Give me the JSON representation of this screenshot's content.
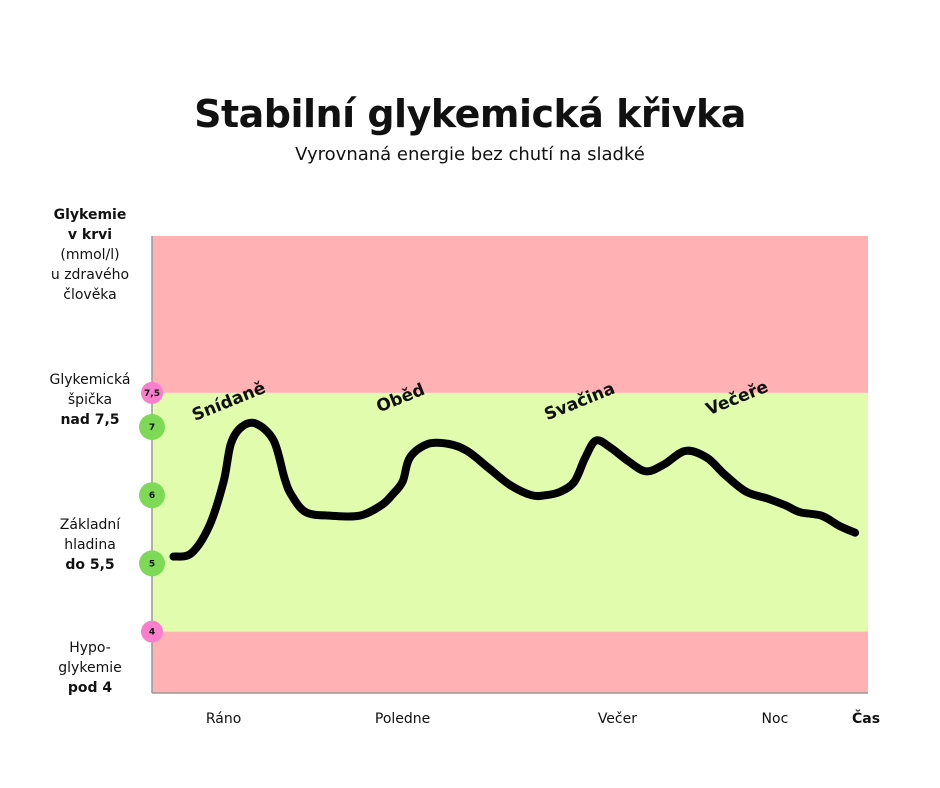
{
  "title": "Stabilní glykemická křivka",
  "subtitle": "Vyrovnaná energie bez chutí na sladké",
  "side_labels": {
    "axis": {
      "line1": "Glykemie",
      "line2": "v krvi",
      "line3": "(mmol/l)",
      "line4": "u zdravého",
      "line5": "člověka"
    },
    "spike": {
      "line1": "Glykemická",
      "line2": "špička",
      "line3": "nad 7,5"
    },
    "base": {
      "line1": "Základní",
      "line2": "hladina",
      "line3": "do 5,5"
    },
    "hypo": {
      "line1": "Hypo-",
      "line2": "glykemie",
      "line3": "pod 4"
    }
  },
  "colors": {
    "danger_zone": "#ffb1b4",
    "normal_zone": "#e0fcac",
    "badge_pink": "#f97ecb",
    "badge_green": "#7ed957",
    "curve": "#000000",
    "axis": "#999999"
  },
  "chart_data": {
    "type": "line",
    "title": "Stabilní glykemická křivka",
    "subtitle": "Vyrovnaná energie bez chutí na sladké",
    "ylabel": "Glykemie v krvi (mmol/l) u zdravého člověka",
    "xlabel": "Čas",
    "ylim": [
      3.1,
      9.8
    ],
    "x_ticks": [
      "Ráno",
      "Poledne",
      "Večer",
      "Noc"
    ],
    "x_end_label": "Čas",
    "y_badges": [
      {
        "label": "7,5",
        "value": 7.5,
        "color": "pink"
      },
      {
        "label": "7",
        "value": 7.0,
        "color": "green"
      },
      {
        "label": "6",
        "value": 6.0,
        "color": "green"
      },
      {
        "label": "5",
        "value": 5.0,
        "color": "green"
      },
      {
        "label": "4",
        "value": 4.0,
        "color": "pink"
      }
    ],
    "zones": [
      {
        "from": 7.5,
        "to": 9.8,
        "kind": "danger"
      },
      {
        "from": 4.0,
        "to": 7.5,
        "kind": "normal"
      },
      {
        "from": 3.1,
        "to": 4.0,
        "kind": "danger"
      }
    ],
    "annotations": [
      {
        "text": "Snídaně",
        "x": 0.11,
        "y": 7.3
      },
      {
        "text": "Oběd",
        "x": 0.35,
        "y": 7.35
      },
      {
        "text": "Svačina",
        "x": 0.6,
        "y": 7.3
      },
      {
        "text": "Večeře",
        "x": 0.82,
        "y": 7.35
      }
    ],
    "series": [
      {
        "x": [
          0.03,
          0.055,
          0.08,
          0.1,
          0.11,
          0.125,
          0.145,
          0.17,
          0.185,
          0.195,
          0.215,
          0.25,
          0.29,
          0.32,
          0.335,
          0.35,
          0.36,
          0.385,
          0.415,
          0.44,
          0.47,
          0.5,
          0.53,
          0.55,
          0.57,
          0.59,
          0.605,
          0.62,
          0.64,
          0.665,
          0.69,
          0.715,
          0.745,
          0.775,
          0.8,
          0.83,
          0.86,
          0.885,
          0.905,
          0.935,
          0.96,
          0.982
        ],
        "values": [
          5.1,
          5.15,
          5.55,
          6.2,
          6.75,
          7.0,
          7.05,
          6.8,
          6.25,
          6.0,
          5.75,
          5.7,
          5.7,
          5.85,
          6.0,
          6.2,
          6.55,
          6.75,
          6.75,
          6.65,
          6.4,
          6.15,
          6.0,
          6.0,
          6.05,
          6.2,
          6.55,
          6.8,
          6.7,
          6.5,
          6.35,
          6.45,
          6.65,
          6.55,
          6.3,
          6.05,
          5.95,
          5.85,
          5.75,
          5.7,
          5.55,
          5.45
        ]
      }
    ]
  }
}
